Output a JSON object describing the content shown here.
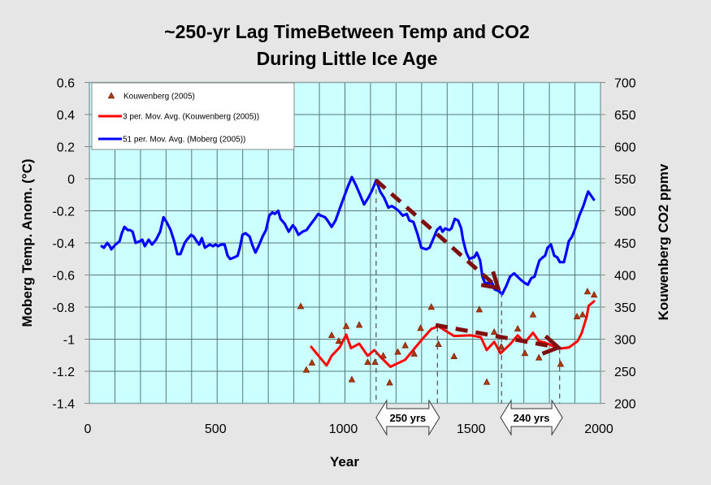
{
  "chart_data": {
    "type": "line",
    "title": "~250-yr Lag TimeBetween Temp and CO2",
    "subtitle": "During Little Ice Age",
    "xlabel": "Year",
    "ylabel": "Moberg Temp. Anom. (°C)",
    "y2label": "Kouwenberg CO2 ppmv",
    "xlim": [
      0,
      2000
    ],
    "ylim": [
      -1.4,
      0.6
    ],
    "y2lim": [
      200,
      700
    ],
    "xticks": [
      "0",
      "500",
      "1000",
      "1500",
      "2000"
    ],
    "xtick_values": [
      0,
      500,
      1000,
      1500,
      2000
    ],
    "yticks": [
      "0.6",
      "0.4",
      "0.2",
      "0",
      "-0.2",
      "-0.4",
      "-0.6",
      "-0.8",
      "-1",
      "-1.2",
      "-1.4"
    ],
    "ytick_values": [
      0.6,
      0.4,
      0.2,
      0,
      -0.2,
      -0.4,
      -0.6,
      -0.8,
      -1,
      -1.2,
      -1.4
    ],
    "y2ticks": [
      "700",
      "650",
      "600",
      "550",
      "500",
      "450",
      "400",
      "350",
      "300",
      "250",
      "200"
    ],
    "y2tick_values": [
      700,
      650,
      600,
      550,
      500,
      450,
      400,
      350,
      300,
      250,
      200
    ],
    "grid": true,
    "x_grid_step": 100,
    "legend_position": "top-left",
    "legend": [
      "Kouwenberg (2005)",
      "3 per. Mov. Avg. (Kouwenberg (2005))",
      "51 per. Mov. Avg. (Moberg (2005))"
    ],
    "colors": {
      "background": "#e6e6e6",
      "plot_background": "#ccffff",
      "gridline": "#557777",
      "lag_arrow": "#7f0f0f",
      "reference_line": "#5a5a5a"
    },
    "series": [
      {
        "name": "Kouwenberg (2005)",
        "type": "scatter",
        "axis": "right",
        "color": "#b03a10",
        "x": [
          827,
          849,
          871,
          948,
          976,
          1005,
          1027,
          1056,
          1089,
          1118,
          1150,
          1175,
          1207,
          1236,
          1271,
          1296,
          1338,
          1366,
          1427,
          1526,
          1555,
          1584,
          1612,
          1676,
          1704,
          1736,
          1759,
          1844,
          1908,
          1930,
          1949,
          1975
        ],
        "y": [
          351,
          252,
          263,
          306,
          297,
          320,
          237,
          322,
          264,
          264,
          274,
          232,
          280,
          290,
          277,
          317,
          350,
          292,
          273,
          346,
          233,
          311,
          288,
          316,
          278,
          338,
          271,
          261,
          335,
          338,
          374,
          369
        ]
      },
      {
        "name": "3 per. Mov. Avg. (Kouwenberg (2005))",
        "type": "line",
        "axis": "right",
        "color": "#ff0000",
        "x": [
          868,
          928,
          948,
          979,
          1005,
          1024,
          1056,
          1089,
          1115,
          1140,
          1178,
          1236,
          1296,
          1338,
          1366,
          1427,
          1494,
          1532,
          1555,
          1584,
          1609,
          1646,
          1676,
          1704,
          1736,
          1759,
          1781,
          1838,
          1876,
          1911,
          1927,
          1946,
          1954,
          1975
        ],
        "y": [
          288,
          259,
          274,
          287,
          307,
          286,
          293,
          274,
          283,
          272,
          257,
          268,
          297,
          316,
          320,
          305,
          306,
          303,
          283,
          296,
          278,
          292,
          306,
          295,
          310,
          297,
          295,
          285,
          287,
          297,
          310,
          335,
          352,
          359
        ]
      },
      {
        "name": "51 per. Mov. Avg. (Moberg (2005))",
        "type": "line",
        "axis": "left",
        "color": "#0000ff",
        "x": [
          48,
          57,
          70,
          80,
          86,
          102,
          118,
          127,
          137,
          150,
          159,
          169,
          181,
          197,
          207,
          217,
          232,
          245,
          261,
          277,
          290,
          302,
          318,
          334,
          344,
          356,
          373,
          382,
          398,
          408,
          420,
          430,
          440,
          452,
          471,
          484,
          494,
          503,
          516,
          529,
          541,
          551,
          567,
          580,
          589,
          599,
          611,
          627,
          637,
          650,
          662,
          678,
          691,
          704,
          716,
          726,
          739,
          748,
          764,
          780,
          796,
          806,
          818,
          834,
          850,
          863,
          882,
          895,
          906,
          922,
          932,
          948,
          963,
          979,
          995,
          1011,
          1027,
          1043,
          1059,
          1075,
          1091,
          1107,
          1122,
          1138,
          1154,
          1170,
          1183,
          1194,
          1210,
          1226,
          1242,
          1252,
          1268,
          1283,
          1299,
          1318,
          1331,
          1347,
          1360,
          1373,
          1382,
          1392,
          1408,
          1417,
          1430,
          1443,
          1455,
          1462,
          1475,
          1487,
          1500,
          1506,
          1516,
          1529,
          1538,
          1548,
          1561,
          1576,
          1586,
          1602,
          1615,
          1631,
          1646,
          1662,
          1675,
          1688,
          1704,
          1716,
          1729,
          1742,
          1751,
          1761,
          1774,
          1783,
          1793,
          1806,
          1819,
          1831,
          1841,
          1857,
          1866,
          1876,
          1889,
          1901,
          1917,
          1933,
          1943,
          1952,
          1965,
          1974
        ],
        "y": [
          -0.42,
          -0.43,
          -0.4,
          -0.42,
          -0.44,
          -0.41,
          -0.39,
          -0.34,
          -0.3,
          -0.32,
          -0.32,
          -0.33,
          -0.4,
          -0.39,
          -0.38,
          -0.42,
          -0.38,
          -0.41,
          -0.38,
          -0.33,
          -0.24,
          -0.27,
          -0.32,
          -0.4,
          -0.47,
          -0.47,
          -0.4,
          -0.38,
          -0.35,
          -0.36,
          -0.39,
          -0.41,
          -0.37,
          -0.43,
          -0.41,
          -0.42,
          -0.41,
          -0.42,
          -0.41,
          -0.41,
          -0.48,
          -0.5,
          -0.49,
          -0.48,
          -0.43,
          -0.35,
          -0.34,
          -0.36,
          -0.41,
          -0.46,
          -0.42,
          -0.36,
          -0.32,
          -0.23,
          -0.21,
          -0.22,
          -0.2,
          -0.25,
          -0.28,
          -0.33,
          -0.29,
          -0.31,
          -0.35,
          -0.33,
          -0.32,
          -0.29,
          -0.25,
          -0.22,
          -0.23,
          -0.24,
          -0.26,
          -0.3,
          -0.26,
          -0.19,
          -0.12,
          -0.05,
          0.01,
          -0.04,
          -0.1,
          -0.16,
          -0.12,
          -0.07,
          -0.01,
          -0.08,
          -0.12,
          -0.18,
          -0.17,
          -0.18,
          -0.2,
          -0.23,
          -0.22,
          -0.26,
          -0.27,
          -0.34,
          -0.43,
          -0.44,
          -0.43,
          -0.37,
          -0.32,
          -0.3,
          -0.33,
          -0.31,
          -0.32,
          -0.31,
          -0.25,
          -0.26,
          -0.31,
          -0.38,
          -0.46,
          -0.5,
          -0.49,
          -0.49,
          -0.46,
          -0.51,
          -0.61,
          -0.65,
          -0.65,
          -0.65,
          -0.69,
          -0.7,
          -0.72,
          -0.67,
          -0.61,
          -0.59,
          -0.61,
          -0.63,
          -0.65,
          -0.66,
          -0.62,
          -0.61,
          -0.56,
          -0.51,
          -0.49,
          -0.48,
          -0.43,
          -0.41,
          -0.48,
          -0.49,
          -0.52,
          -0.52,
          -0.46,
          -0.39,
          -0.36,
          -0.31,
          -0.23,
          -0.17,
          -0.12,
          -0.08,
          -0.11,
          -0.13
        ]
      }
    ],
    "annotations": {
      "reference_lines": [
        {
          "year": 1122,
          "from": -0.01,
          "axis": "left"
        },
        {
          "year": 1362,
          "from": 319,
          "axis": "right"
        },
        {
          "year": 1613,
          "from": -0.71,
          "axis": "left"
        },
        {
          "year": 1840,
          "from": 285,
          "axis": "right"
        }
      ],
      "lag_arrows": [
        {
          "from_x": 1122,
          "from_y": -0.01,
          "to_x": 1599,
          "to_y": -0.68,
          "axis": "left"
        },
        {
          "from_x": 1355,
          "from_y": 322,
          "to_x": 1835,
          "to_y": 287,
          "axis": "right"
        }
      ],
      "spans": [
        {
          "label": "250 yrs",
          "from": 1122,
          "to": 1370
        },
        {
          "label": "240 yrs",
          "from": 1609,
          "to": 1851
        }
      ]
    }
  }
}
